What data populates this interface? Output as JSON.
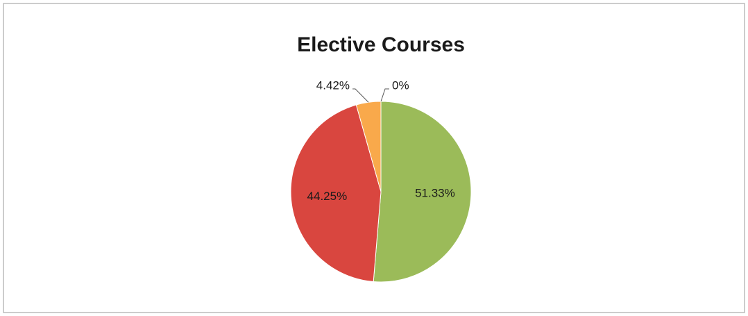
{
  "chart_data": {
    "type": "pie",
    "title": "Elective Courses",
    "values": [
      51.33,
      44.25,
      4.42,
      0
    ],
    "value_labels": [
      "51.33%",
      "44.25%",
      "4.42%",
      "0%"
    ],
    "colors": [
      "#9bbb59",
      "#d9463f",
      "#f9a94b",
      "#4f81bd"
    ]
  }
}
